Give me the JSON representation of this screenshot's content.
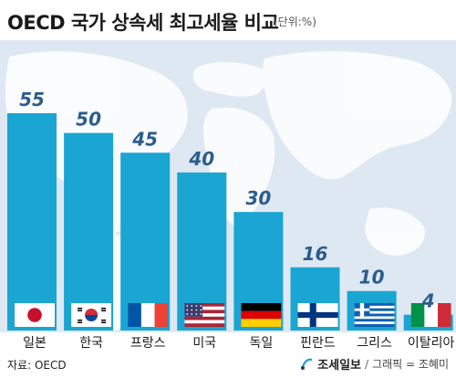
{
  "header": {
    "title": "OECD 국가 상속세 최고세율 비교",
    "unit": "(단위:%)"
  },
  "footer": {
    "source": "자료: OECD",
    "logo_text": "조세일보",
    "separator": "/",
    "credit_note": "그래픽 = 조혜미"
  },
  "colors": {
    "bar": "#1aa5d3",
    "value_label": "#2b5d8c",
    "background": "#dde8f2"
  },
  "chart_data": {
    "type": "bar",
    "title": "OECD 국가 상속세 최고세율 비교",
    "categories": [
      "일본",
      "한국",
      "프랑스",
      "미국",
      "독일",
      "핀란드",
      "그리스",
      "이탈리아"
    ],
    "values": [
      55,
      50,
      45,
      40,
      30,
      16,
      10,
      4
    ],
    "flags": [
      "japan-flag",
      "korea-flag",
      "france-flag",
      "usa-flag",
      "germany-flag",
      "finland-flag",
      "greece-flag",
      "italy-flag"
    ],
    "ylim": [
      0,
      55
    ],
    "grid": false,
    "legend": "none"
  }
}
